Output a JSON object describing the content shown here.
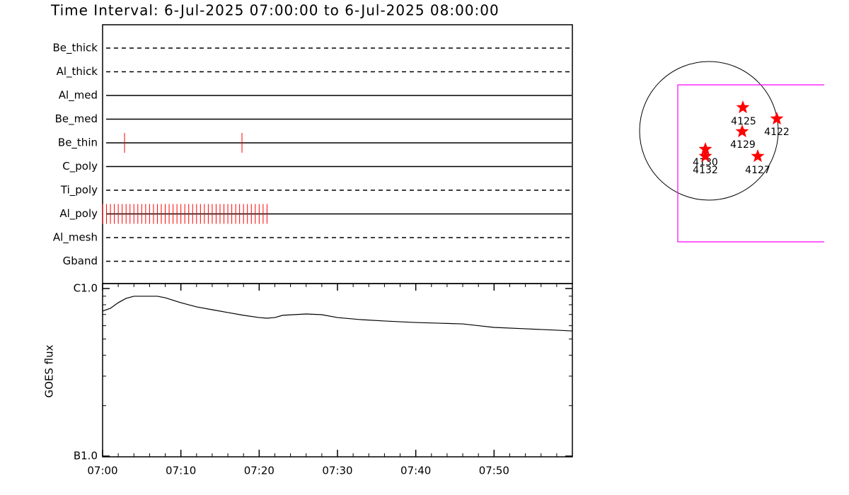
{
  "title": "Time Interval:  6-Jul-2025 07:00:00 to  6-Jul-2025 08:00:00",
  "chart_data": [
    {
      "type": "timeline",
      "xlim": [
        0,
        60
      ],
      "event_color": "#ff0000",
      "rows": [
        {
          "name": "Be_thick",
          "line_style": "dashed",
          "events": []
        },
        {
          "name": "Al_thick",
          "line_style": "dashed",
          "events": []
        },
        {
          "name": "Al_med",
          "line_style": "solid",
          "events": []
        },
        {
          "name": "Be_med",
          "line_style": "solid",
          "events": []
        },
        {
          "name": "Be_thin",
          "line_style": "solid",
          "events": [
            2.8,
            17.8
          ]
        },
        {
          "name": "C_poly",
          "line_style": "solid",
          "events": []
        },
        {
          "name": "Ti_poly",
          "line_style": "dashed",
          "events": []
        },
        {
          "name": "Al_poly",
          "line_style": "solid",
          "events": [
            0,
            0.5,
            1,
            1.5,
            2,
            2.5,
            3,
            3.5,
            4,
            4.5,
            5,
            5.5,
            6,
            6.5,
            7,
            7.5,
            8,
            8.5,
            9,
            9.5,
            10,
            10.5,
            11,
            11.5,
            12,
            12.5,
            13,
            13.5,
            14,
            14.5,
            15,
            15.5,
            16,
            16.5,
            17,
            17.5,
            18,
            18.5,
            19,
            19.5,
            20,
            20.5,
            21
          ]
        },
        {
          "name": "Al_mesh",
          "line_style": "dashed",
          "events": []
        },
        {
          "name": "Gband",
          "line_style": "dashed",
          "events": []
        }
      ]
    },
    {
      "type": "line",
      "y_label": "GOES flux",
      "color": "#000000",
      "log_scale": true,
      "x": [
        0,
        1,
        2,
        3,
        4,
        7,
        8,
        10,
        12,
        14,
        16,
        18,
        20,
        21,
        22,
        23,
        26,
        28,
        30,
        33,
        36,
        40,
        43,
        46,
        48,
        50,
        54,
        58,
        60
      ],
      "values": [
        7.33e-07,
        7.62e-07,
        8.23e-07,
        8.73e-07,
        8.99e-07,
        8.99e-07,
        8.81e-07,
        8.23e-07,
        7.77e-07,
        7.47e-07,
        7.19e-07,
        6.92e-07,
        6.71e-07,
        6.65e-07,
        6.71e-07,
        6.92e-07,
        7.05e-07,
        6.98e-07,
        6.71e-07,
        6.52e-07,
        6.4e-07,
        6.27e-07,
        6.21e-07,
        6.15e-07,
        6e-07,
        5.86e-07,
        5.75e-07,
        5.64e-07,
        5.58e-07
      ],
      "xlim": [
        0,
        60
      ],
      "xticks": [
        {
          "value": 0,
          "label": "07:00"
        },
        {
          "value": 10,
          "label": "07:10"
        },
        {
          "value": 20,
          "label": "07:20"
        },
        {
          "value": 30,
          "label": "07:30"
        },
        {
          "value": 40,
          "label": "07:40"
        },
        {
          "value": 50,
          "label": "07:50"
        }
      ],
      "minor_xticks": [
        2,
        4,
        6,
        8,
        12,
        14,
        16,
        18,
        22,
        24,
        26,
        28,
        32,
        34,
        36,
        38,
        42,
        44,
        46,
        48,
        52,
        54,
        56,
        58
      ],
      "ylim": [
        1e-07,
        1e-06
      ],
      "yticks": [
        {
          "value": 1e-07,
          "label": "B1.0"
        },
        {
          "value": 1e-06,
          "label": "C1.0"
        }
      ],
      "minor_yticks": [
        2e-07,
        3e-07,
        4e-07,
        5e-07,
        6e-07,
        7e-07,
        8e-07,
        9e-07
      ]
    }
  ],
  "map": {
    "star_color": "#ff0000",
    "frame_color": "#ff00ff",
    "active_regions": [
      "4125",
      "4122",
      "4129",
      "4130",
      "4132",
      "4127"
    ]
  }
}
